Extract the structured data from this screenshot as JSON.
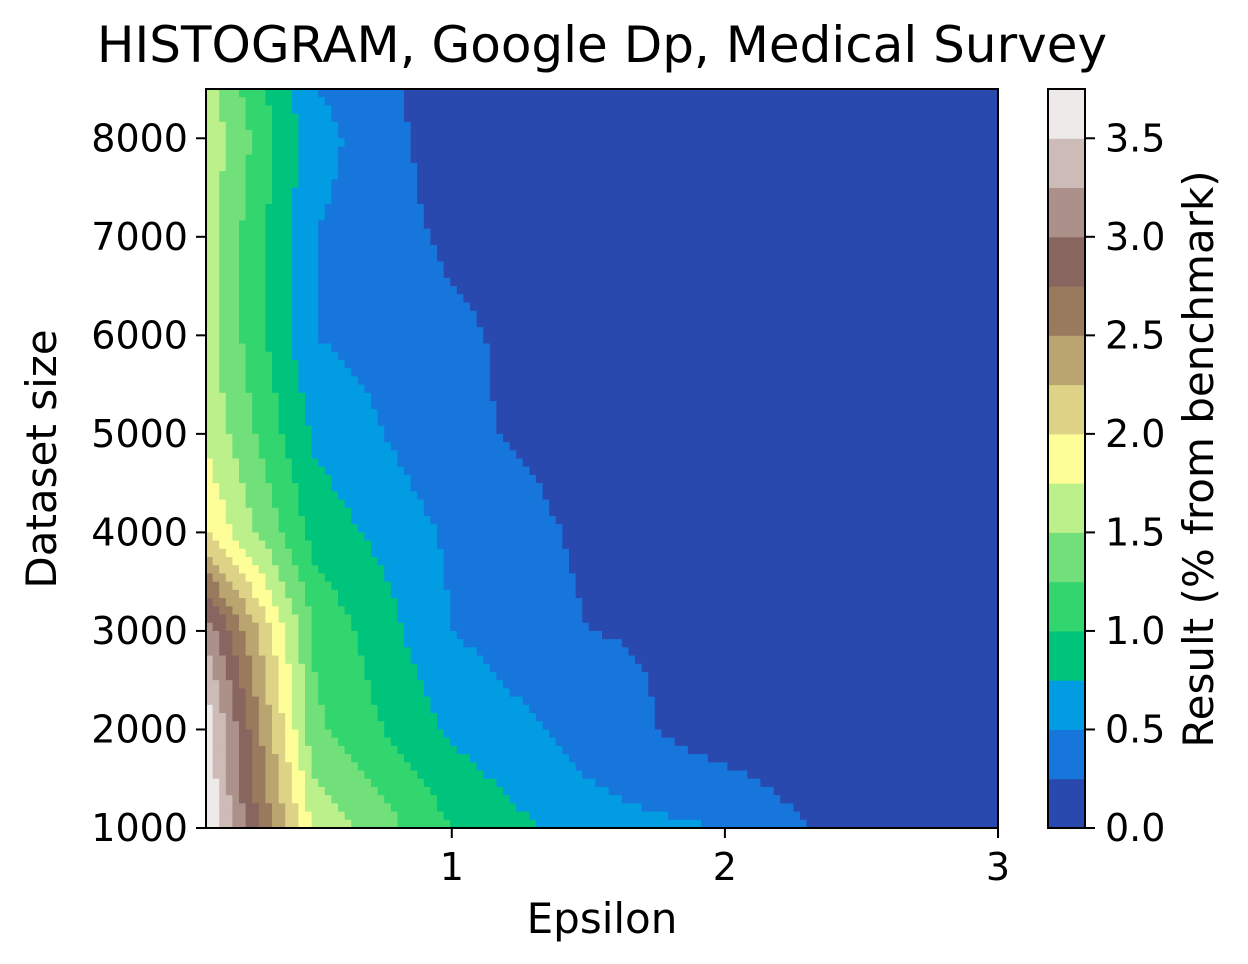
{
  "chart_data": {
    "type": "heatmap",
    "subtype": "filled-contour",
    "title": "HISTOGRAM, Google Dp, Medical Survey",
    "xlabel": "Epsilon",
    "ylabel": "Dataset size",
    "colorbar_label": "Result (% from benchmark)",
    "xlim": [
      0.1,
      3.0
    ],
    "ylim": [
      1000,
      8500
    ],
    "x_ticks": [
      1,
      2,
      3
    ],
    "x_tick_labels": [
      "1",
      "2",
      "3"
    ],
    "y_ticks": [
      1000,
      2000,
      3000,
      4000,
      5000,
      6000,
      7000,
      8000
    ],
    "y_tick_labels": [
      "1000",
      "2000",
      "3000",
      "4000",
      "5000",
      "6000",
      "7000",
      "8000"
    ],
    "colorbar_ticks": [
      0.0,
      0.5,
      1.0,
      1.5,
      2.0,
      2.5,
      3.0,
      3.5
    ],
    "colorbar_tick_labels": [
      "0.0",
      "0.5",
      "1.0",
      "1.5",
      "2.0",
      "2.5",
      "3.0",
      "3.5"
    ],
    "levels": [
      0.0,
      0.25,
      0.5,
      0.75,
      1.0,
      1.25,
      1.5,
      1.75,
      2.0,
      2.25,
      2.5,
      2.75,
      3.0,
      3.25,
      3.5,
      3.75
    ],
    "colormap": "terrain",
    "level_colors": [
      "#2a49ae",
      "#1776dc",
      "#029ce3",
      "#00c47c",
      "#33d66e",
      "#71e07a",
      "#bcf08b",
      "#fefe98",
      "#ddd285",
      "#baa570",
      "#9a7a5d",
      "#896560",
      "#ac918a",
      "#cdbbb7",
      "#eeeae9"
    ],
    "x": [
      0.1,
      0.5,
      1.0,
      1.5,
      2.0,
      2.5,
      3.0
    ],
    "y": [
      1000,
      2000,
      3000,
      4000,
      5000,
      6000,
      7000,
      8000,
      8500
    ],
    "z": [
      [
        3.7,
        1.7,
        1.0,
        0.6,
        0.5,
        0.1,
        0.0
      ],
      [
        3.7,
        1.3,
        0.7,
        0.4,
        0.1,
        0.0,
        0.0
      ],
      [
        3.2,
        1.2,
        0.5,
        0.25,
        0.2,
        0.1,
        0.0
      ],
      [
        2.0,
        0.9,
        0.45,
        0.2,
        0.1,
        0.1,
        0.0
      ],
      [
        1.7,
        0.7,
        0.3,
        0.15,
        0.0,
        0.0,
        0.0
      ],
      [
        1.6,
        0.5,
        0.3,
        0.1,
        0.0,
        0.0,
        0.0
      ],
      [
        1.6,
        0.5,
        0.2,
        0.1,
        0.0,
        0.0,
        0.0
      ],
      [
        1.7,
        0.6,
        0.1,
        0.0,
        0.0,
        0.0,
        0.0
      ],
      [
        1.6,
        0.5,
        0.1,
        0.0,
        0.0,
        0.0,
        0.0
      ]
    ]
  }
}
